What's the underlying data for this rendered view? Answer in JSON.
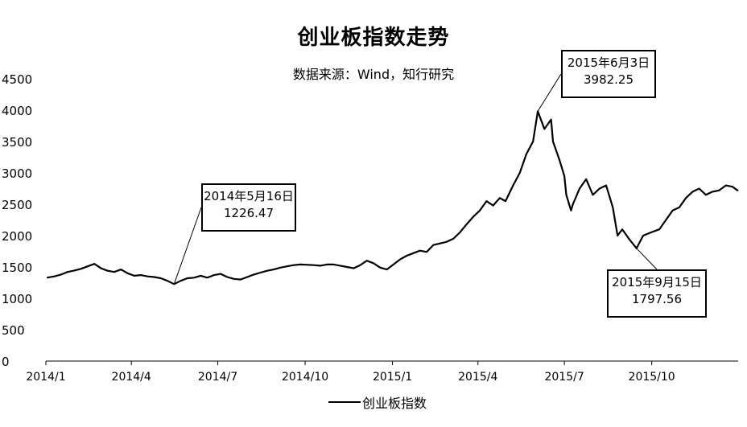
{
  "chart_data": {
    "type": "line",
    "title": "创业板指数走势",
    "subtitle": "数据来源：Wind，知行研究",
    "ylim": [
      0,
      4500
    ],
    "yticks": [
      0,
      500,
      1000,
      1500,
      2000,
      2500,
      3000,
      3500,
      4000,
      4500
    ],
    "xticks": [
      "2014/1",
      "2014/4",
      "2014/7",
      "2014/10",
      "2015/1",
      "2015/4",
      "2015/7",
      "2015/10"
    ],
    "xrange": [
      "2014-01-01",
      "2015-12-31"
    ],
    "legend": "bottom-center",
    "grid": false,
    "series": [
      {
        "name": "创业板指数",
        "color": "#000000",
        "points": [
          [
            "2014-01-02",
            1330
          ],
          [
            "2014-01-10",
            1350
          ],
          [
            "2014-01-17",
            1380
          ],
          [
            "2014-01-24",
            1420
          ],
          [
            "2014-01-30",
            1440
          ],
          [
            "2014-02-07",
            1470
          ],
          [
            "2014-02-14",
            1510
          ],
          [
            "2014-02-21",
            1550
          ],
          [
            "2014-02-28",
            1480
          ],
          [
            "2014-03-07",
            1440
          ],
          [
            "2014-03-14",
            1420
          ],
          [
            "2014-03-21",
            1460
          ],
          [
            "2014-03-28",
            1400
          ],
          [
            "2014-04-04",
            1360
          ],
          [
            "2014-04-11",
            1370
          ],
          [
            "2014-04-18",
            1350
          ],
          [
            "2014-04-25",
            1340
          ],
          [
            "2014-05-02",
            1320
          ],
          [
            "2014-05-09",
            1280
          ],
          [
            "2014-05-16",
            1226.47
          ],
          [
            "2014-05-23",
            1280
          ],
          [
            "2014-05-30",
            1320
          ],
          [
            "2014-06-06",
            1330
          ],
          [
            "2014-06-13",
            1360
          ],
          [
            "2014-06-20",
            1330
          ],
          [
            "2014-06-27",
            1370
          ],
          [
            "2014-07-04",
            1390
          ],
          [
            "2014-07-11",
            1340
          ],
          [
            "2014-07-18",
            1310
          ],
          [
            "2014-07-25",
            1300
          ],
          [
            "2014-08-01",
            1340
          ],
          [
            "2014-08-08",
            1380
          ],
          [
            "2014-08-15",
            1410
          ],
          [
            "2014-08-22",
            1440
          ],
          [
            "2014-08-29",
            1460
          ],
          [
            "2014-09-05",
            1490
          ],
          [
            "2014-09-12",
            1510
          ],
          [
            "2014-09-19",
            1530
          ],
          [
            "2014-09-26",
            1540
          ],
          [
            "2014-10-10",
            1530
          ],
          [
            "2014-10-17",
            1520
          ],
          [
            "2014-10-24",
            1540
          ],
          [
            "2014-10-31",
            1540
          ],
          [
            "2014-11-07",
            1520
          ],
          [
            "2014-11-14",
            1500
          ],
          [
            "2014-11-21",
            1480
          ],
          [
            "2014-11-28",
            1530
          ],
          [
            "2014-12-05",
            1600
          ],
          [
            "2014-12-12",
            1560
          ],
          [
            "2014-12-19",
            1490
          ],
          [
            "2014-12-26",
            1460
          ],
          [
            "2015-01-02",
            1540
          ],
          [
            "2015-01-09",
            1620
          ],
          [
            "2015-01-16",
            1680
          ],
          [
            "2015-01-23",
            1720
          ],
          [
            "2015-01-30",
            1760
          ],
          [
            "2015-02-06",
            1740
          ],
          [
            "2015-02-13",
            1850
          ],
          [
            "2015-02-27",
            1900
          ],
          [
            "2015-03-06",
            1950
          ],
          [
            "2015-03-13",
            2050
          ],
          [
            "2015-03-20",
            2180
          ],
          [
            "2015-03-27",
            2300
          ],
          [
            "2015-04-03",
            2400
          ],
          [
            "2015-04-10",
            2550
          ],
          [
            "2015-04-17",
            2480
          ],
          [
            "2015-04-24",
            2600
          ],
          [
            "2015-04-30",
            2550
          ],
          [
            "2015-05-08",
            2800
          ],
          [
            "2015-05-15",
            3000
          ],
          [
            "2015-05-22",
            3300
          ],
          [
            "2015-05-29",
            3500
          ],
          [
            "2015-06-03",
            3982.25
          ],
          [
            "2015-06-10",
            3700
          ],
          [
            "2015-06-17",
            3850
          ],
          [
            "2015-06-19",
            3500
          ],
          [
            "2015-06-26",
            3200
          ],
          [
            "2015-07-01",
            2950
          ],
          [
            "2015-07-03",
            2650
          ],
          [
            "2015-07-08",
            2400
          ],
          [
            "2015-07-10",
            2500
          ],
          [
            "2015-07-17",
            2750
          ],
          [
            "2015-07-24",
            2900
          ],
          [
            "2015-07-31",
            2650
          ],
          [
            "2015-08-07",
            2750
          ],
          [
            "2015-08-14",
            2800
          ],
          [
            "2015-08-21",
            2450
          ],
          [
            "2015-08-26",
            2000
          ],
          [
            "2015-08-31",
            2100
          ],
          [
            "2015-09-07",
            1950
          ],
          [
            "2015-09-15",
            1797.56
          ],
          [
            "2015-09-22",
            2000
          ],
          [
            "2015-09-30",
            2050
          ],
          [
            "2015-10-09",
            2100
          ],
          [
            "2015-10-16",
            2250
          ],
          [
            "2015-10-23",
            2400
          ],
          [
            "2015-10-30",
            2450
          ],
          [
            "2015-11-06",
            2600
          ],
          [
            "2015-11-13",
            2700
          ],
          [
            "2015-11-20",
            2750
          ],
          [
            "2015-11-27",
            2650
          ],
          [
            "2015-12-04",
            2700
          ],
          [
            "2015-12-11",
            2720
          ],
          [
            "2015-12-18",
            2800
          ],
          [
            "2015-12-25",
            2780
          ],
          [
            "2015-12-31",
            2714
          ]
        ]
      }
    ],
    "annotations": [
      {
        "date": "2014-05-16",
        "value": 1226.47,
        "label_line1": "2014年5月16日",
        "label_line2": "1226.47"
      },
      {
        "date": "2015-06-03",
        "value": 3982.25,
        "label_line1": "2015年6月3日",
        "label_line2": "3982.25"
      },
      {
        "date": "2015-09-15",
        "value": 1797.56,
        "label_line1": "2015年9月15日",
        "label_line2": "1797.56"
      }
    ]
  }
}
